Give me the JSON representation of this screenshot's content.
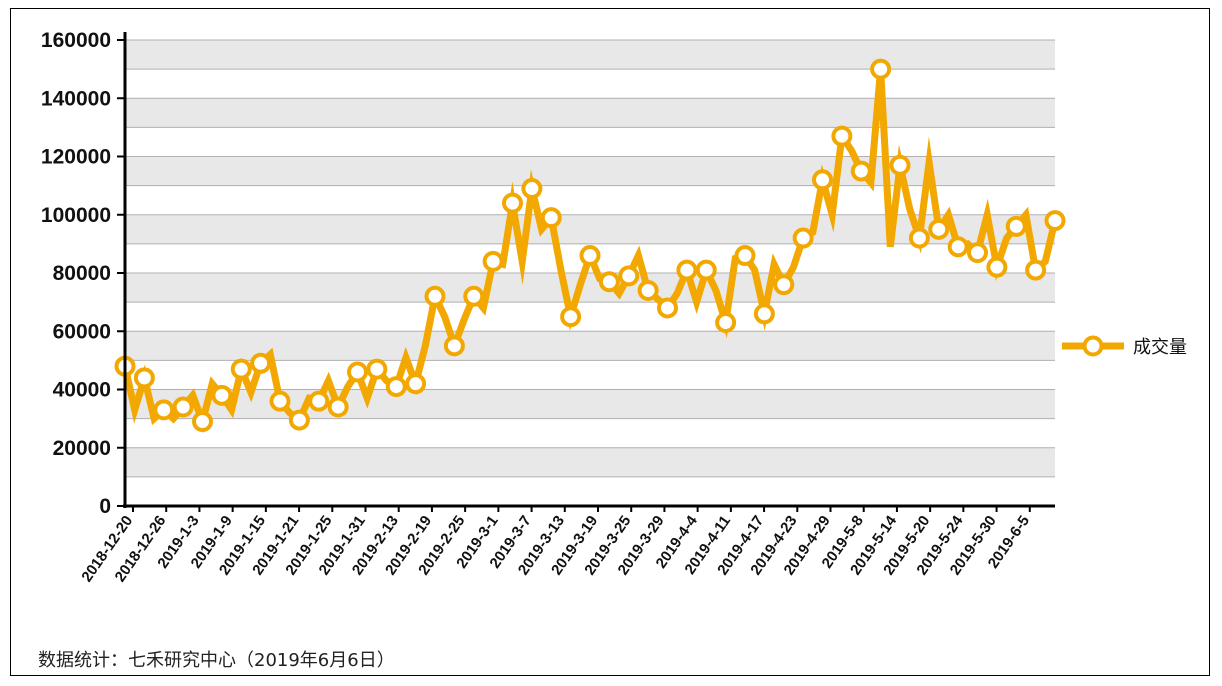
{
  "source_note": "数据统计：七禾研究中心（2019年6月6日）",
  "colors": {
    "series": "#F2A800",
    "band": "#E8E8E8",
    "grid": "#B0B0B0",
    "axis": "#000000",
    "marker_fill": "#FFFFFF"
  },
  "chart_data": {
    "type": "line",
    "title": "",
    "xlabel": "",
    "ylabel": "",
    "ylim": [
      0,
      160000
    ],
    "yticks": [
      0,
      20000,
      40000,
      60000,
      80000,
      100000,
      120000,
      140000,
      160000
    ],
    "grid": true,
    "legend_position": "right",
    "x_tick_labels": [
      "2018-12-20",
      "2018-12-26",
      "2019-1-3",
      "2019-1-9",
      "2019-1-15",
      "2019-1-21",
      "2019-1-25",
      "2019-1-31",
      "2019-2-13",
      "2019-2-19",
      "2019-2-25",
      "2019-3-1",
      "2019-3-7",
      "2019-3-13",
      "2019-3-19",
      "2019-3-25",
      "2019-3-29",
      "2019-4-4",
      "2019-4-11",
      "2019-4-17",
      "2019-4-23",
      "2019-4-29",
      "2019-5-8",
      "2019-5-14",
      "2019-5-20",
      "2019-5-24",
      "2019-5-30",
      "2019-6-5"
    ],
    "series": [
      {
        "name": "成交量",
        "values": [
          48000,
          33000,
          44000,
          30000,
          33000,
          30000,
          34000,
          38000,
          29000,
          42000,
          38000,
          33000,
          47000,
          39000,
          49000,
          52000,
          36000,
          32000,
          29500,
          37000,
          36000,
          43000,
          34000,
          41000,
          46000,
          37000,
          47000,
          43000,
          41000,
          51000,
          42000,
          55000,
          72000,
          65000,
          55000,
          64000,
          72000,
          68000,
          84000,
          83000,
          104000,
          84000,
          109000,
          95000,
          99000,
          81000,
          65000,
          76000,
          86000,
          78000,
          77000,
          73000,
          79000,
          86000,
          74000,
          71000,
          68000,
          73000,
          81000,
          70000,
          81000,
          74000,
          63000,
          85000,
          86000,
          81000,
          66000,
          83000,
          76000,
          82000,
          92000,
          94000,
          112000,
          100000,
          127000,
          122000,
          115000,
          111000,
          150000,
          89000,
          117000,
          102000,
          92000,
          118000,
          95000,
          100000,
          89000,
          90000,
          87000,
          100000,
          82000,
          92000,
          96000,
          100000,
          81000,
          84000,
          98000
        ],
        "marker_indices": [
          0,
          2,
          4,
          6,
          8,
          10,
          12,
          14,
          16,
          18,
          20,
          22,
          24,
          26,
          28,
          30,
          32,
          34,
          36,
          38,
          40,
          42,
          44,
          46,
          48,
          50,
          52,
          54,
          56,
          58,
          60,
          62,
          64,
          66,
          68,
          70,
          72,
          74,
          76,
          78,
          80,
          82,
          84,
          86,
          88,
          90,
          92,
          94,
          96
        ]
      }
    ]
  }
}
